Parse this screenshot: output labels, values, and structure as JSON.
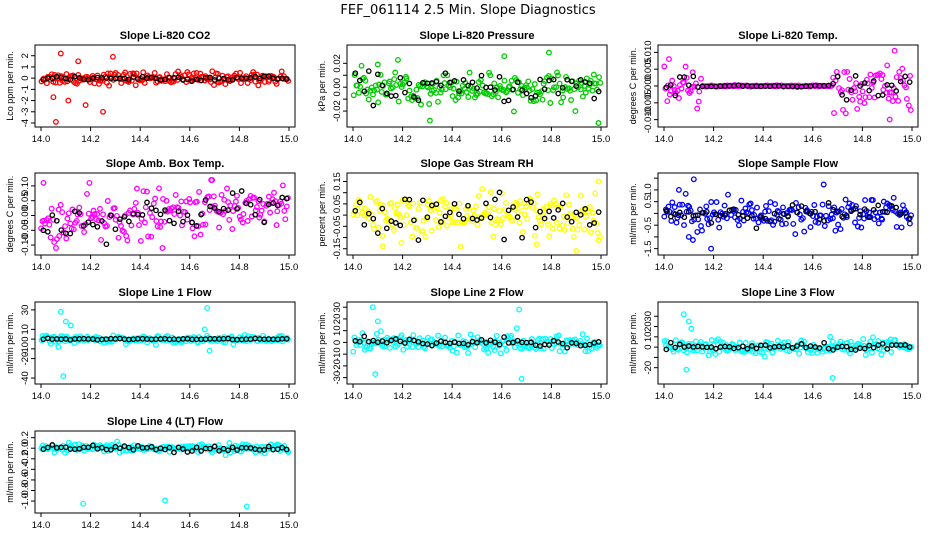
{
  "figure_title": "FEF_061114  2.5 Min. Slope Diagnostics",
  "colors": {
    "red": "#ff0000",
    "green": "#00cc00",
    "magenta": "#ff00ff",
    "yellow": "#ffff00",
    "blue": "#0000ff",
    "cyan": "#00ffff",
    "black": "#000000"
  },
  "chart_data": [
    {
      "type": "scatter",
      "title": "Slope Li-820 CO2",
      "ylabel": "Lco ppm per min.",
      "color": "red",
      "xlim": [
        14.0,
        15.0
      ],
      "xticks": [
        "14.0",
        "14.2",
        "14.4",
        "14.6",
        "14.8",
        "15.0"
      ],
      "ylim": [
        -4,
        2.6
      ],
      "yticks": [
        -4,
        -3,
        -2,
        -1,
        0,
        1,
        2
      ],
      "ytick_labels": [
        "-4",
        "-3",
        "-2",
        "-1",
        "0",
        "1",
        "2"
      ],
      "noise": 0.28,
      "outliers": [
        [
          14.06,
          -3.9
        ],
        [
          14.08,
          2.2
        ],
        [
          14.25,
          -3.0
        ],
        [
          14.18,
          -2.4
        ],
        [
          14.11,
          -2.0
        ],
        [
          14.05,
          -1.7
        ],
        [
          14.29,
          1.9
        ],
        [
          14.15,
          1.5
        ]
      ],
      "black_noise": 0.12
    },
    {
      "type": "scatter",
      "title": "Slope Li-820 Pressure",
      "ylabel": "kPa per min.",
      "color": "green",
      "xlim": [
        14.0,
        15.0
      ],
      "xticks": [
        "14.0",
        "14.2",
        "14.4",
        "14.6",
        "14.8",
        "15.0"
      ],
      "ylim": [
        -0.03,
        0.032
      ],
      "yticks": [
        -0.02,
        -0.01,
        0.0,
        0.01,
        0.02
      ],
      "ytick_labels": [
        "-0.02",
        "0.00",
        "0.02"
      ],
      "noise": 0.006,
      "outliers": [
        [
          14.31,
          -0.028
        ],
        [
          14.79,
          0.029
        ],
        [
          14.99,
          -0.03
        ],
        [
          14.1,
          0.019
        ],
        [
          14.61,
          0.026
        ]
      ],
      "black_noise": 0.006
    },
    {
      "type": "scatter",
      "title": "Slope Li-820 Temp.",
      "ylabel": "degrees C per min.",
      "color": "magenta",
      "xlim": [
        14.0,
        15.0
      ],
      "xticks": [
        "14.0",
        "14.2",
        "14.4",
        "14.6",
        "14.8",
        "15.0"
      ],
      "ylim": [
        -0.011,
        0.011
      ],
      "yticks": [
        -0.01,
        -0.005,
        0.0,
        0.005,
        0.01
      ],
      "ytick_labels": [
        "-0.010",
        "-0.005",
        "0.000",
        "0.005",
        "0.010"
      ],
      "noise": 0.0032,
      "quiet_range": [
        14.15,
        14.68
      ],
      "outliers": [
        [
          14.93,
          0.0105
        ],
        [
          14.91,
          -0.01
        ],
        [
          14.02,
          0.008
        ]
      ],
      "black_noise": 0.002
    },
    {
      "type": "scatter",
      "title": "Slope Amb. Box Temp.",
      "ylabel": "degrees C per min.",
      "color": "magenta",
      "xlim": [
        14.0,
        15.0
      ],
      "xticks": [
        "14.0",
        "14.2",
        "14.4",
        "14.6",
        "14.8",
        "15.0"
      ],
      "ylim": [
        -0.12,
        0.13
      ],
      "yticks": [
        -0.1,
        -0.05,
        0.0,
        0.05,
        0.1
      ],
      "ytick_labels": [
        "-0.10",
        "-0.05",
        "0.00",
        "0.05",
        "0.10"
      ],
      "noise": 0.04,
      "trend": [
        -0.03,
        0.04
      ],
      "outliers": [
        [
          14.01,
          0.11
        ],
        [
          14.69,
          0.12
        ],
        [
          14.49,
          -0.11
        ]
      ],
      "black_noise": 0.03
    },
    {
      "type": "scatter",
      "title": "Slope Gas Stream RH",
      "ylabel": "percent per min.",
      "color": "yellow",
      "xlim": [
        14.0,
        15.0
      ],
      "xticks": [
        "14.0",
        "14.2",
        "14.4",
        "14.6",
        "14.8",
        "15.0"
      ],
      "ylim": [
        -0.16,
        0.17
      ],
      "yticks": [
        -0.15,
        -0.1,
        -0.05,
        0.0,
        0.05,
        0.1,
        0.15
      ],
      "ytick_labels": [
        "-0.15",
        "-0.05",
        "0.05",
        "0.15"
      ],
      "noise": 0.05,
      "outliers": [
        [
          14.99,
          0.15
        ],
        [
          14.74,
          -0.13
        ],
        [
          14.12,
          -0.14
        ],
        [
          14.9,
          -0.16
        ]
      ],
      "black_noise": 0.05
    },
    {
      "type": "scatter",
      "title": "Slope Sample Flow",
      "ylabel": "ml/min per min.",
      "color": "blue",
      "xlim": [
        14.0,
        15.0
      ],
      "xticks": [
        "14.0",
        "14.2",
        "14.4",
        "14.6",
        "14.8",
        "15.0"
      ],
      "ylim": [
        -1.6,
        1.55
      ],
      "yticks": [
        -1.5,
        -1.0,
        -0.5,
        0.0,
        0.5,
        1.0,
        1.5
      ],
      "ytick_labels": [
        "-1.5",
        "-0.5",
        "0.5",
        "1.0"
      ],
      "noise": 0.35,
      "outliers": [
        [
          14.12,
          1.45
        ],
        [
          14.19,
          -1.5
        ],
        [
          14.06,
          1.0
        ],
        [
          14.1,
          -1.0
        ]
      ],
      "black_noise": 0.2
    },
    {
      "type": "scatter",
      "title": "Slope Line 1 Flow",
      "ylabel": "ml/min per min.",
      "color": "cyan",
      "xlim": [
        14.0,
        15.0
      ],
      "xticks": [
        "14.0",
        "14.2",
        "14.4",
        "14.6",
        "14.8",
        "15.0"
      ],
      "ylim": [
        -42,
        34
      ],
      "yticks": [
        -40,
        -20,
        -10,
        0,
        10,
        30
      ],
      "ytick_labels": [
        "-40",
        "-20",
        "-10",
        "0",
        "10",
        "30"
      ],
      "noise": 1.8,
      "outliers": [
        [
          14.08,
          28
        ],
        [
          14.1,
          18
        ],
        [
          14.12,
          14
        ],
        [
          14.09,
          -38
        ],
        [
          14.07,
          -8
        ],
        [
          14.67,
          32
        ],
        [
          14.68,
          -12
        ],
        [
          14.66,
          10
        ]
      ],
      "black_noise": 0.3
    },
    {
      "type": "scatter",
      "title": "Slope Line 2 Flow",
      "ylabel": "ml/min per min.",
      "color": "cyan",
      "xlim": [
        14.0,
        15.0
      ],
      "xticks": [
        "14.0",
        "14.2",
        "14.4",
        "14.6",
        "14.8",
        "15.0"
      ],
      "ylim": [
        -32,
        31
      ],
      "yticks": [
        -30,
        -20,
        -10,
        0,
        10,
        20,
        30
      ],
      "ytick_labels": [
        "-30",
        "-20",
        "-10",
        "0",
        "10",
        "20",
        "30"
      ],
      "noise": 3.5,
      "outliers": [
        [
          14.08,
          30
        ],
        [
          14.09,
          -27
        ],
        [
          14.1,
          18
        ],
        [
          14.67,
          28
        ],
        [
          14.68,
          -31
        ],
        [
          14.66,
          12
        ]
      ],
      "black_noise": 2.0
    },
    {
      "type": "scatter",
      "title": "Slope Line 3 Flow",
      "ylabel": "ml/min per min.",
      "color": "cyan",
      "xlim": [
        14.0,
        15.0
      ],
      "xticks": [
        "14.0",
        "14.2",
        "14.4",
        "14.6",
        "14.8",
        "15.0"
      ],
      "ylim": [
        -32,
        40
      ],
      "yticks": [
        -20,
        -10,
        0,
        10,
        20,
        30
      ],
      "ytick_labels": [
        "-20",
        "0",
        "10",
        "20",
        "30"
      ],
      "noise": 3.5,
      "outliers": [
        [
          14.08,
          32
        ],
        [
          14.1,
          25
        ],
        [
          14.09,
          -22
        ],
        [
          14.11,
          18
        ],
        [
          14.68,
          -30
        ],
        [
          14.67,
          10
        ]
      ],
      "black_noise": 1.5
    },
    {
      "type": "scatter",
      "title": "Slope Line 4 (LT) Flow",
      "ylabel": "ml/min per min.",
      "color": "cyan",
      "xlim": [
        14.0,
        15.0
      ],
      "xticks": [
        "14.0",
        "14.2",
        "14.4",
        "14.6",
        "14.8",
        "15.0"
      ],
      "ylim": [
        -1.15,
        0.25
      ],
      "yticks": [
        -1.0,
        -0.8,
        -0.6,
        -0.4,
        -0.2,
        0.0,
        0.2
      ],
      "ytick_labels": [
        "-1.0",
        "-0.8",
        "-0.6",
        "-0.4",
        "-0.2",
        "0.0",
        "0.2"
      ],
      "noise": 0.04,
      "outliers": [
        [
          14.17,
          -1.05
        ],
        [
          14.5,
          -0.99
        ],
        [
          14.83,
          -1.1
        ]
      ],
      "black_noise": 0.03
    }
  ]
}
